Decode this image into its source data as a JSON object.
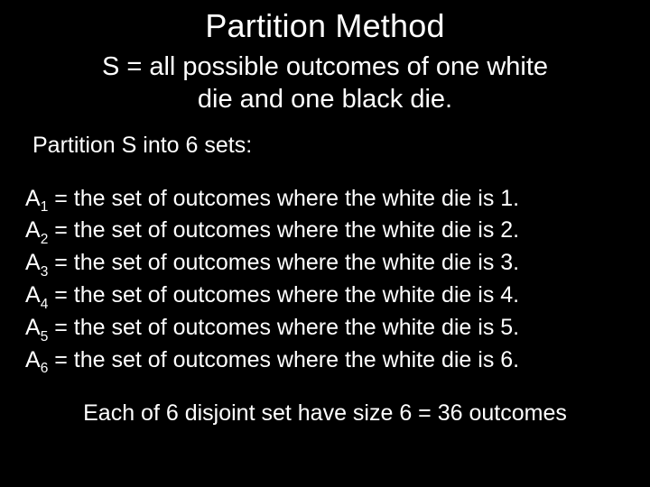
{
  "colors": {
    "background": "#000000",
    "text": "#ffffff"
  },
  "typography": {
    "family": "Arial",
    "title_size_pt": 36,
    "subtitle_size_pt": 29,
    "body_size_pt": 25,
    "subscript_scale": 0.62
  },
  "slide": {
    "title": "Partition Method",
    "subtitle_line1": "S = all possible outcomes of one white",
    "subtitle_line2": "die and one black die.",
    "section_label": "Partition S into 6 sets:",
    "sets": [
      {
        "name": "A",
        "index": "1",
        "desc": " = the set of outcomes where the white die is 1."
      },
      {
        "name": "A",
        "index": "2",
        "desc": " = the set of outcomes where the white die is 2."
      },
      {
        "name": "A",
        "index": "3",
        "desc": " = the set of outcomes where the white die is 3."
      },
      {
        "name": "A",
        "index": "4",
        "desc": " = the set of outcomes where the white die is 4."
      },
      {
        "name": "A",
        "index": "5",
        "desc": " = the set of outcomes where the white die is 5."
      },
      {
        "name": "A",
        "index": "6",
        "desc": " = the set of outcomes where the white die is 6."
      }
    ],
    "footer": "Each of 6 disjoint set have size 6 = 36 outcomes"
  }
}
